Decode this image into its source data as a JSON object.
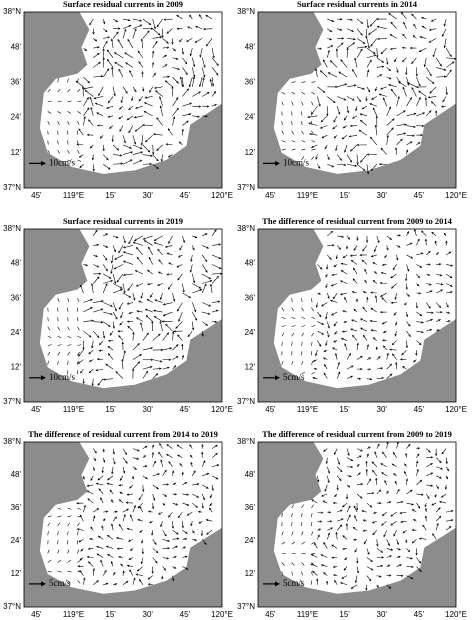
{
  "panels": [
    {
      "title": "Surface residual currents in 2009",
      "scale_label": "10cm/s"
    },
    {
      "title": "Surface residual currents in 2014",
      "scale_label": "10cm/s"
    },
    {
      "title": "Surface residual currents in 2019",
      "scale_label": "10cm/s"
    },
    {
      "title": "The difference of residual current from 2009 to 2014",
      "scale_label": "5cm/s"
    },
    {
      "title": "The difference of residual current from 2014 to 2019",
      "scale_label": "5cm/s"
    },
    {
      "title": "The difference of residual current from 2009 to 2019",
      "scale_label": "5cm/s"
    }
  ],
  "y_labels": [
    "38°N",
    "48'",
    "36'",
    "24'",
    "12'",
    "37°N"
  ],
  "x_labels": [
    "45'",
    "119°E",
    "15'",
    "30'",
    "45'",
    "120°E"
  ]
}
